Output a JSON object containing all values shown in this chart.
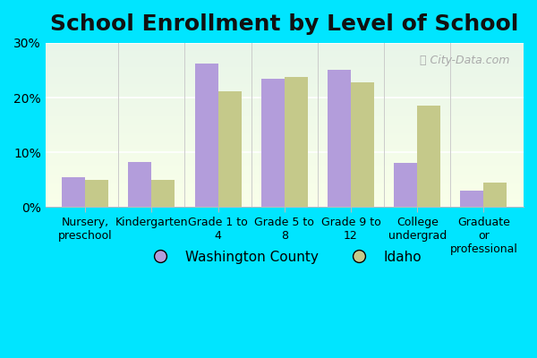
{
  "title": "School Enrollment by Level of School",
  "categories": [
    "Nursery,\npreschool",
    "Kindergarten",
    "Grade 1 to\n4",
    "Grade 5 to\n8",
    "Grade 9 to\n12",
    "College\nundergrad",
    "Graduate\nor\nprofessional"
  ],
  "washington_county": [
    5.5,
    8.2,
    26.2,
    23.5,
    25.0,
    8.0,
    3.0
  ],
  "idaho": [
    5.0,
    5.0,
    21.2,
    23.8,
    22.8,
    18.5,
    4.5
  ],
  "washington_color": "#b39ddb",
  "idaho_color": "#c5c98a",
  "bar_width": 0.35,
  "ylim": [
    0,
    30
  ],
  "yticks": [
    0,
    10,
    20,
    30
  ],
  "ytick_labels": [
    "0%",
    "10%",
    "20%",
    "30%"
  ],
  "bg_color_top": "#e8f5e9",
  "bg_color_bottom": "#f9ffe9",
  "legend_washington": "Washington County",
  "legend_idaho": "Idaho",
  "title_fontsize": 18,
  "tick_fontsize": 10,
  "legend_fontsize": 11,
  "outer_bg": "#00e5ff"
}
